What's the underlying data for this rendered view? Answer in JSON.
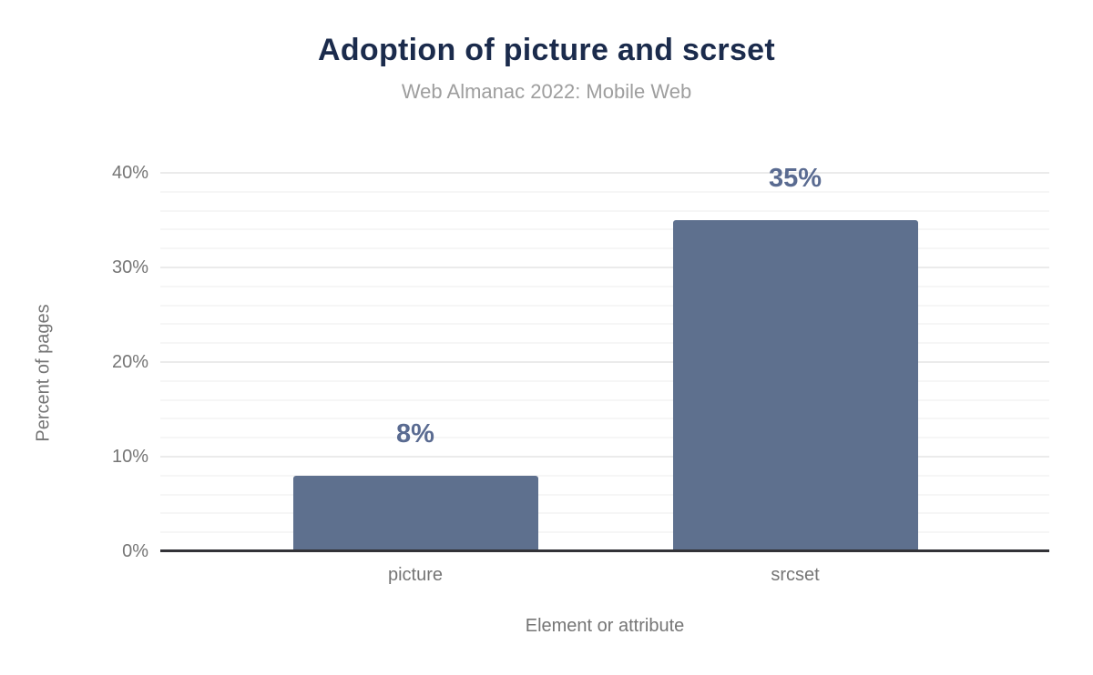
{
  "chart_data": {
    "type": "bar",
    "title": "Adoption of picture and scrset",
    "subtitle": "Web Almanac 2022: Mobile Web",
    "xlabel": "Element or attribute",
    "ylabel": "Percent of pages",
    "categories": [
      "picture",
      "srcset"
    ],
    "values": [
      8,
      35
    ],
    "value_labels": [
      "8%",
      "35%"
    ],
    "ylim": [
      0,
      40
    ],
    "yticks": [
      0,
      10,
      20,
      30,
      40
    ],
    "ytick_labels": [
      "0%",
      "10%",
      "20%",
      "30%",
      "40%"
    ],
    "grid": "horizontal minor lines every 2%, major lines every 10%, no vertical grid",
    "legend": "none",
    "colors": {
      "bar": "#5e708e",
      "value_label": "#5a6b91",
      "title": "#1b2b4c",
      "subtitle": "#9e9e9e",
      "axis_text": "#757575",
      "axis_line": "#333338",
      "grid_minor": "#f6f6f6",
      "grid_major": "#ebebeb",
      "background": "#ffffff"
    }
  }
}
